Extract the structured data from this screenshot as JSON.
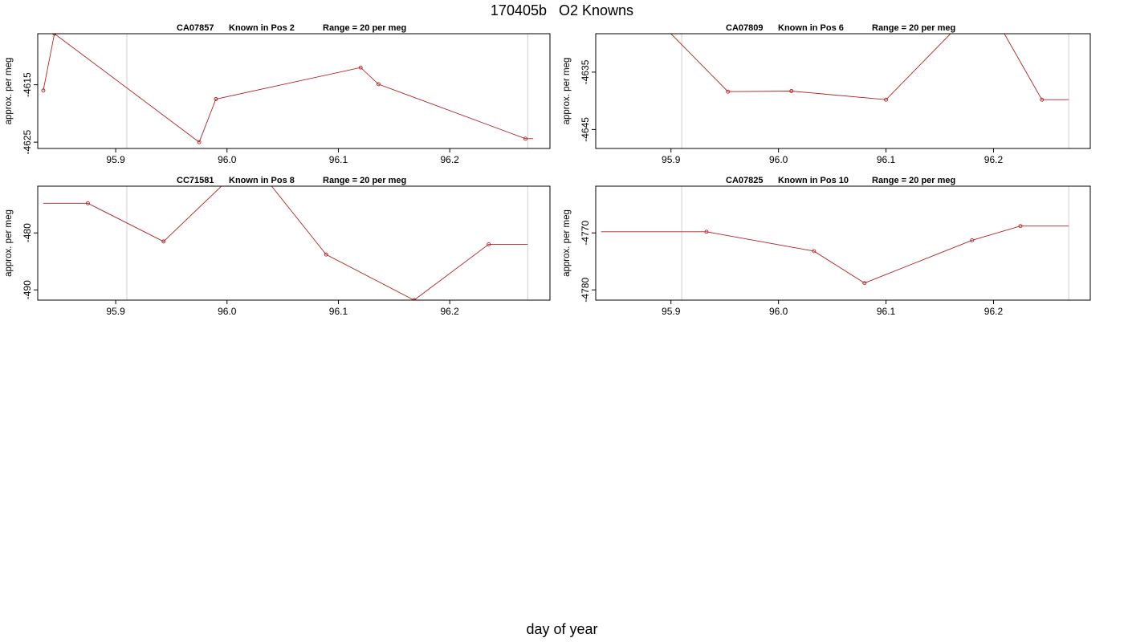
{
  "page": {
    "title": "170405b   O2 Knowns",
    "xlabel": "day of year"
  },
  "chart_data": [
    {
      "type": "line",
      "title_parts": [
        "CA07857",
        "Known in Pos 2",
        "Range = 20 per meg"
      ],
      "ylabel": "approx. per meg",
      "xlim": [
        95.83,
        96.29
      ],
      "ylim": [
        -4626.1,
        -4606.1
      ],
      "x_ticks": [
        95.9,
        96.0,
        96.1,
        96.2
      ],
      "y_ticks": [
        -4615,
        -4625
      ],
      "vlines": [
        95.91,
        96.27
      ],
      "series": [
        {
          "x": [
            95.835,
            95.845,
            95.975,
            95.99,
            96.12,
            96.136,
            96.268,
            96.275
          ],
          "y": [
            -4616.0,
            -4606.1,
            -4625.0,
            -4617.5,
            -4612.0,
            -4614.9,
            -4624.4,
            -4624.4
          ],
          "markers": [
            0,
            1,
            2,
            3,
            4,
            5,
            6
          ]
        }
      ],
      "line_color": "#b22222"
    },
    {
      "type": "line",
      "title_parts": [
        "CA07809",
        "Known in Pos 6",
        "Range = 20 per meg"
      ],
      "ylabel": "approx. per meg",
      "xlim": [
        95.83,
        96.29
      ],
      "ylim": [
        -4648.3,
        -4628.3
      ],
      "x_ticks": [
        95.9,
        96.0,
        96.1,
        96.2
      ],
      "y_ticks": [
        -4635,
        -4645
      ],
      "vlines": [
        95.91,
        96.27
      ],
      "series": [
        {
          "x": [
            95.9,
            95.953,
            96.012,
            96.1,
            96.16,
            96.21,
            96.245,
            96.27
          ],
          "y": [
            -4628.3,
            -4638.4,
            -4638.3,
            -4639.8,
            -4628.3,
            -4628.3,
            -4639.8,
            -4639.8
          ],
          "markers": [
            1,
            2,
            3,
            6
          ]
        }
      ],
      "line_color": "#b22222"
    },
    {
      "type": "line",
      "title_parts": [
        "CC71581",
        "Known in Pos 8",
        "Range = 20 per meg"
      ],
      "ylabel": "approx. per meg",
      "xlim": [
        95.83,
        96.29
      ],
      "ylim": [
        -491.8,
        -471.8
      ],
      "x_ticks": [
        95.9,
        96.0,
        96.1,
        96.2
      ],
      "y_ticks": [
        -480,
        -490
      ],
      "vlines": [
        95.91,
        96.27
      ],
      "series": [
        {
          "x": [
            95.835,
            95.875,
            95.943,
            95.995,
            96.04,
            96.089,
            96.168,
            96.235,
            96.27
          ],
          "y": [
            -474.8,
            -474.8,
            -481.5,
            -471.8,
            -471.8,
            -483.8,
            -491.8,
            -482.0,
            -482.0
          ],
          "markers": [
            1,
            2,
            5,
            6,
            7
          ]
        }
      ],
      "line_color": "#b22222"
    },
    {
      "type": "line",
      "title_parts": [
        "CA07825",
        "Known in Pos 10",
        "Range = 20 per meg"
      ],
      "ylabel": "approx. per meg",
      "xlim": [
        95.83,
        96.29
      ],
      "ylim": [
        -4781.8,
        -4761.8
      ],
      "x_ticks": [
        95.9,
        96.0,
        96.1,
        96.2
      ],
      "y_ticks": [
        -4770,
        -4780
      ],
      "vlines": [
        95.91,
        96.27
      ],
      "series": [
        {
          "x": [
            95.835,
            95.933,
            96.033,
            96.08,
            96.18,
            96.225,
            96.27
          ],
          "y": [
            -4769.8,
            -4769.8,
            -4773.2,
            -4778.8,
            -4771.3,
            -4768.8,
            -4768.8
          ],
          "markers": [
            1,
            2,
            3,
            4,
            5
          ]
        }
      ],
      "line_color": "#b22222"
    }
  ]
}
